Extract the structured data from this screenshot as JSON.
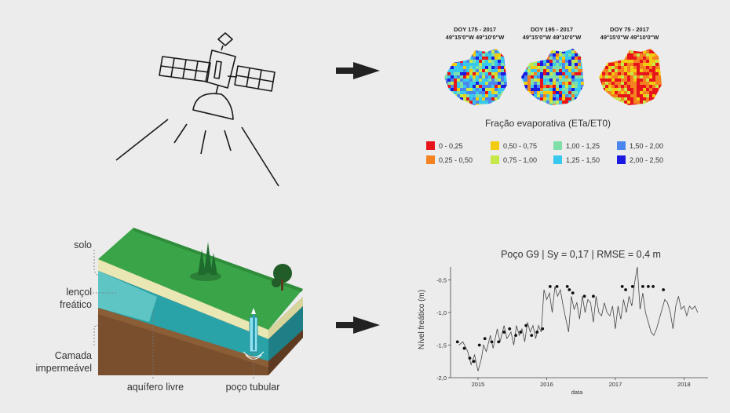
{
  "maps": {
    "panels": [
      {
        "title": "DOY 175 - 2017",
        "coords": "49°15'0\"W  49°10'0\"W"
      },
      {
        "title": "DOY 195 - 2017",
        "coords": "49°15'0\"W  49°10'0\"W"
      },
      {
        "title": "DOY 75 - 2017",
        "coords": "49°15'0\"W  49°10'0\"W"
      }
    ],
    "legend_title": "Fração evaporativa (ETa/ET0)",
    "legend": [
      {
        "label": "0 - 0,25",
        "color": "#e8141c"
      },
      {
        "label": "0,25 - 0,50",
        "color": "#f58220"
      },
      {
        "label": "0,50 - 0,75",
        "color": "#f2cc10"
      },
      {
        "label": "0,75 - 1,00",
        "color": "#c6e84a"
      },
      {
        "label": "1,00 - 1,25",
        "color": "#7ee0a8"
      },
      {
        "label": "1,25 - 1,50",
        "color": "#36c8ee"
      },
      {
        "label": "1,50 - 2,00",
        "color": "#4b86ee"
      },
      {
        "label": "2,00 - 2,50",
        "color": "#1a1ae0"
      }
    ]
  },
  "aquifer": {
    "labels": {
      "solo": "solo",
      "lencol1": "lençol",
      "lencol2": "freático",
      "camada1": "Camada",
      "camada2": "impermeável",
      "aquifero": "aquífero livre",
      "poco": "poço tubular"
    }
  },
  "chart_data": {
    "type": "line",
    "title": "Poço G9  |  Sy = 0,17  |  RMSE = 0,4 m",
    "xlabel": "data",
    "ylabel": "Nível freático (m)",
    "xlim": [
      2014.6,
      2018.35
    ],
    "ylim": [
      -2.0,
      -0.3
    ],
    "xticks": [
      2015,
      2016,
      2017,
      2018
    ],
    "xtick_labels": [
      "2015",
      "2016",
      "2017",
      "2018"
    ],
    "yticks": [
      -2.0,
      -1.5,
      -1.0,
      -0.5
    ],
    "ytick_labels": [
      "-2,0",
      "-1,5",
      "-1,0",
      "-0,5"
    ],
    "series": [
      {
        "style": "line",
        "color": "#444444",
        "x": [
          2014.72,
          2014.78,
          2014.85,
          2014.9,
          2014.95,
          2015.0,
          2015.05,
          2015.08,
          2015.12,
          2015.18,
          2015.22,
          2015.28,
          2015.32,
          2015.38,
          2015.42,
          2015.48,
          2015.52,
          2015.56,
          2015.6,
          2015.64,
          2015.68,
          2015.72,
          2015.76,
          2015.8,
          2015.84,
          2015.88,
          2015.92,
          2015.96,
          2016.0,
          2016.04,
          2016.08,
          2016.12,
          2016.16,
          2016.2,
          2016.24,
          2016.28,
          2016.32,
          2016.36,
          2016.4,
          2016.44,
          2016.48,
          2016.52,
          2016.56,
          2016.6,
          2016.64,
          2016.68,
          2016.72,
          2016.76,
          2016.8,
          2016.84,
          2016.88,
          2016.92,
          2016.96,
          2017.0,
          2017.04,
          2017.08,
          2017.12,
          2017.16,
          2017.2,
          2017.24,
          2017.28,
          2017.32,
          2017.36,
          2017.4,
          2017.44,
          2017.48,
          2017.52,
          2017.56,
          2017.6,
          2017.64,
          2017.68,
          2017.72,
          2017.76,
          2017.8,
          2017.84,
          2017.88,
          2017.92,
          2017.96,
          2018.0,
          2018.04,
          2018.08,
          2018.12,
          2018.16,
          2018.2
        ],
        "y": [
          -1.5,
          -1.45,
          -1.6,
          -1.8,
          -1.65,
          -1.9,
          -1.7,
          -1.5,
          -1.6,
          -1.35,
          -1.55,
          -1.25,
          -1.45,
          -1.2,
          -1.4,
          -1.3,
          -1.5,
          -1.2,
          -1.35,
          -1.25,
          -1.45,
          -1.15,
          -1.3,
          -1.2,
          -1.4,
          -1.2,
          -1.3,
          -0.65,
          -0.8,
          -0.7,
          -1.0,
          -0.6,
          -0.75,
          -0.65,
          -0.9,
          -1.1,
          -1.3,
          -0.75,
          -0.95,
          -0.85,
          -1.1,
          -0.75,
          -1.0,
          -0.8,
          -0.85,
          -1.15,
          -0.75,
          -1.0,
          -1.05,
          -0.85,
          -1.0,
          -1.05,
          -0.9,
          -1.25,
          -0.9,
          -1.1,
          -0.8,
          -1.0,
          -0.75,
          -0.9,
          -0.55,
          -0.3,
          -0.95,
          -0.7,
          -1.0,
          -1.15,
          -1.3,
          -1.35,
          -1.25,
          -1.1,
          -0.95,
          -0.8,
          -0.85,
          -1.0,
          -1.25,
          -0.9,
          -0.75,
          -0.95,
          -0.9,
          -1.05,
          -0.9,
          -0.95,
          -0.9,
          -1.0
        ]
      },
      {
        "style": "points",
        "color": "#111111",
        "x": [
          2014.7,
          2014.8,
          2014.88,
          2014.94,
          2015.02,
          2015.1,
          2015.2,
          2015.3,
          2015.38,
          2015.46,
          2015.55,
          2015.62,
          2015.7,
          2015.78,
          2015.86,
          2015.94,
          2016.05,
          2016.15,
          2016.3,
          2016.33,
          2016.38,
          2016.55,
          2016.68,
          2017.1,
          2017.15,
          2017.25,
          2017.4,
          2017.48,
          2017.55,
          2017.7
        ],
        "y": [
          -1.45,
          -1.55,
          -1.7,
          -1.75,
          -1.5,
          -1.4,
          -1.45,
          -1.45,
          -1.3,
          -1.25,
          -1.35,
          -1.3,
          -1.2,
          -1.35,
          -1.3,
          -1.25,
          -0.6,
          -0.6,
          -0.6,
          -0.65,
          -0.7,
          -0.75,
          -0.75,
          -0.6,
          -0.65,
          -0.6,
          -0.6,
          -0.6,
          -0.6,
          -0.65
        ]
      }
    ]
  }
}
